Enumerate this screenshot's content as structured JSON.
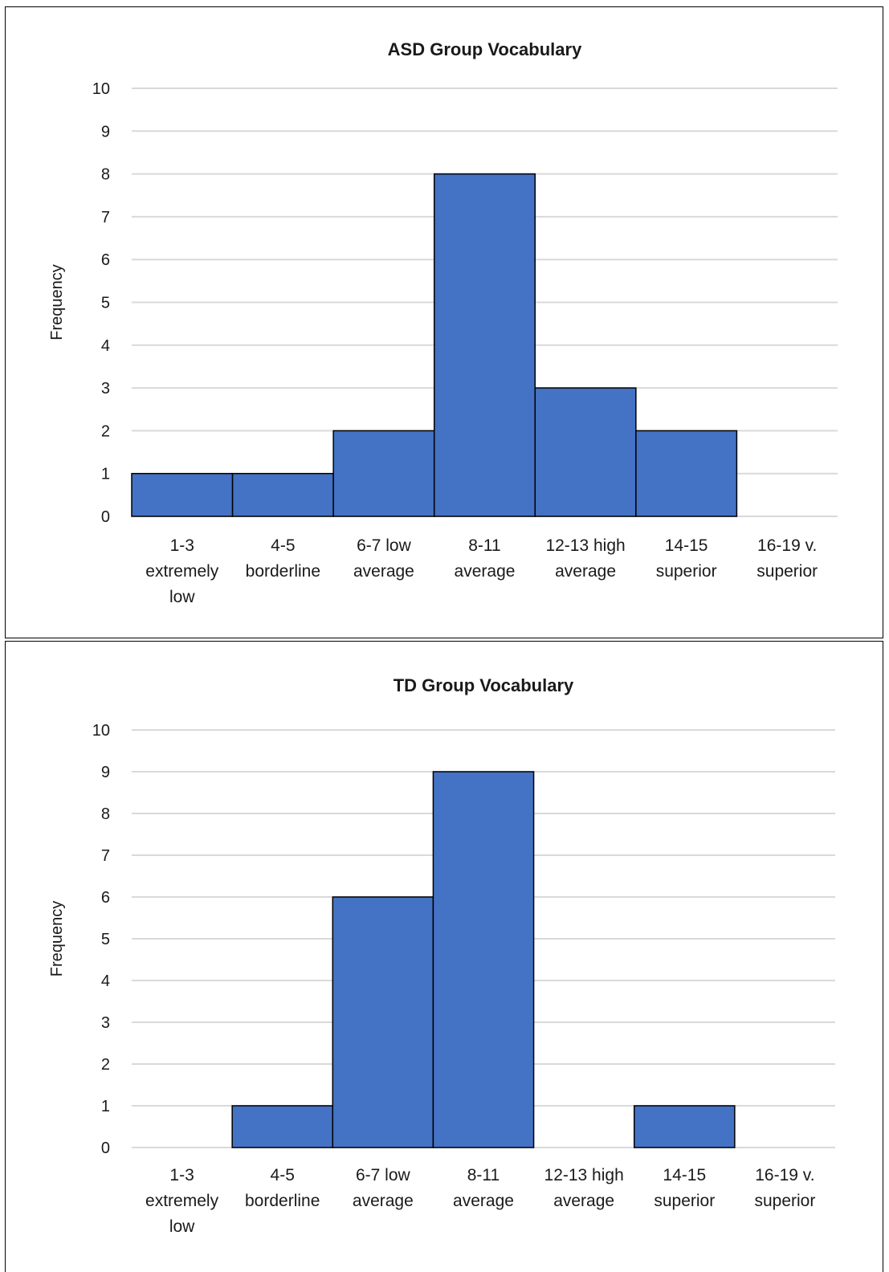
{
  "colors": {
    "bar_fill": "#4472c4",
    "grid": "#d9d9d9"
  },
  "chart_data": [
    {
      "type": "bar",
      "title": "ASD Group Vocabulary",
      "xlabel": "",
      "ylabel": "Frequency",
      "ylim": [
        0,
        10
      ],
      "yticks": [
        0,
        1,
        2,
        3,
        4,
        5,
        6,
        7,
        8,
        9,
        10
      ],
      "grid": true,
      "legend": "none",
      "categories": [
        [
          "1-3",
          "extremely",
          "low"
        ],
        [
          "4-5",
          "borderline"
        ],
        [
          "6-7 low",
          "average"
        ],
        [
          "8-11",
          "average"
        ],
        [
          "12-13 high",
          "average"
        ],
        [
          "14-15",
          "superior"
        ],
        [
          "16-19  v.",
          "superior"
        ]
      ],
      "values": [
        1,
        1,
        2,
        8,
        3,
        2,
        0
      ]
    },
    {
      "type": "bar",
      "title": "TD Group Vocabulary",
      "xlabel": "",
      "ylabel": "Frequency",
      "ylim": [
        0,
        10
      ],
      "yticks": [
        0,
        1,
        2,
        3,
        4,
        5,
        6,
        7,
        8,
        9,
        10
      ],
      "grid": true,
      "legend": "none",
      "categories": [
        [
          "1-3",
          "extremely",
          "low"
        ],
        [
          "4-5",
          "borderline"
        ],
        [
          "6-7 low",
          "average"
        ],
        [
          "8-11",
          "average"
        ],
        [
          "12-13 high",
          "average"
        ],
        [
          "14-15",
          "superior"
        ],
        [
          "16-19  v.",
          "superior"
        ]
      ],
      "values": [
        0,
        1,
        6,
        9,
        0,
        1,
        0
      ]
    }
  ]
}
